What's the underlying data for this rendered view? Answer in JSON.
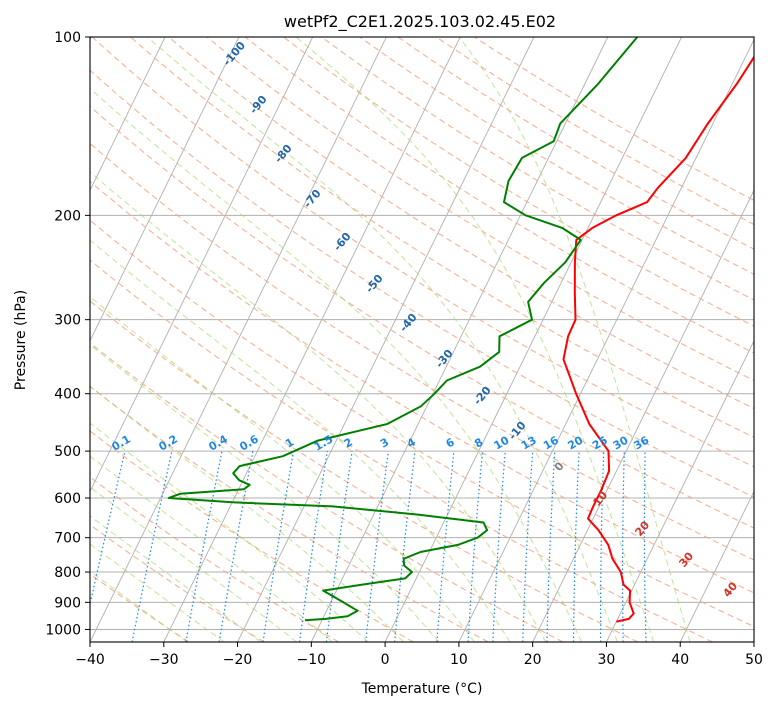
{
  "chart_data": {
    "type": "line",
    "title": "wetPf2_C2E1.2025.103.02.45.E02",
    "xlabel": "Temperature (°C)",
    "ylabel": "Pressure (hPa)",
    "xlim": [
      -40,
      50
    ],
    "ylim": [
      1050,
      100
    ],
    "y_scale": "log",
    "x_ticks": [
      -40,
      -30,
      -20,
      -10,
      0,
      10,
      20,
      30,
      40,
      50
    ],
    "y_ticks": [
      100,
      200,
      300,
      400,
      500,
      600,
      700,
      800,
      900,
      1000
    ],
    "grid": true,
    "series": [
      {
        "role": "temperature",
        "color": "#ff0000",
        "points": [
          [
            970,
            30.0
          ],
          [
            960,
            31.5
          ],
          [
            940,
            31.8
          ],
          [
            900,
            30.5
          ],
          [
            860,
            29.8
          ],
          [
            840,
            28.5
          ],
          [
            800,
            27.3
          ],
          [
            760,
            25.3
          ],
          [
            720,
            23.8
          ],
          [
            680,
            21.5
          ],
          [
            650,
            19.3
          ],
          [
            620,
            19.2
          ],
          [
            580,
            19.2
          ],
          [
            540,
            19.0
          ],
          [
            500,
            17.6
          ],
          [
            450,
            13.2
          ],
          [
            400,
            9.4
          ],
          [
            350,
            5.4
          ],
          [
            320,
            4.5
          ],
          [
            300,
            4.4
          ],
          [
            270,
            2.5
          ],
          [
            240,
            0.5
          ],
          [
            220,
            -0.8
          ],
          [
            210,
            0.6
          ],
          [
            200,
            3.0
          ],
          [
            190,
            6.3
          ],
          [
            180,
            6.8
          ],
          [
            160,
            8.6
          ],
          [
            140,
            9.3
          ],
          [
            120,
            10.6
          ],
          [
            100,
            11.6
          ]
        ]
      },
      {
        "role": "dewpoint",
        "color": "#008000",
        "points": [
          [
            965,
            -12.3
          ],
          [
            960,
            -9.6
          ],
          [
            950,
            -6.8
          ],
          [
            930,
            -5.8
          ],
          [
            900,
            -8.3
          ],
          [
            880,
            -10.0
          ],
          [
            860,
            -11.8
          ],
          [
            840,
            -6.9
          ],
          [
            820,
            -1.5
          ],
          [
            800,
            -1.0
          ],
          [
            780,
            -2.5
          ],
          [
            760,
            -3.0
          ],
          [
            740,
            -1.2
          ],
          [
            720,
            3.4
          ],
          [
            700,
            5.6
          ],
          [
            680,
            6.4
          ],
          [
            660,
            5.4
          ],
          [
            640,
            -4.0
          ],
          [
            620,
            -16.1
          ],
          [
            610,
            -30.0
          ],
          [
            600,
            -38.9
          ],
          [
            590,
            -37.6
          ],
          [
            580,
            -29.3
          ],
          [
            570,
            -28.8
          ],
          [
            560,
            -30.5
          ],
          [
            545,
            -31.8
          ],
          [
            530,
            -31.4
          ],
          [
            510,
            -26.2
          ],
          [
            480,
            -22.5
          ],
          [
            450,
            -14.2
          ],
          [
            420,
            -10.8
          ],
          [
            400,
            -9.8
          ],
          [
            380,
            -9.0
          ],
          [
            360,
            -5.4
          ],
          [
            340,
            -3.8
          ],
          [
            320,
            -4.8
          ],
          [
            300,
            -1.5
          ],
          [
            280,
            -3.2
          ],
          [
            260,
            -2.3
          ],
          [
            240,
            -0.8
          ],
          [
            220,
            -0.2
          ],
          [
            210,
            -3.5
          ],
          [
            200,
            -9.3
          ],
          [
            190,
            -13.1
          ],
          [
            175,
            -13.9
          ],
          [
            160,
            -13.6
          ],
          [
            150,
            -10.4
          ],
          [
            140,
            -10.7
          ],
          [
            120,
            -8.2
          ],
          [
            100,
            -6.0
          ]
        ]
      }
    ],
    "dry_adiabat_labels": [
      "-100",
      "-90",
      "-80",
      "-70",
      "-60",
      "-50",
      "-40",
      "-30",
      "-20",
      "-10"
    ],
    "mixing_ratio_labels": [
      "0.1",
      "0.2",
      "0.4",
      "0.6",
      "1",
      "1.5",
      "2",
      "3",
      "4",
      "6",
      "8",
      "10",
      "13",
      "16",
      "20",
      "25",
      "30",
      "36"
    ],
    "moist_adiabat_labels": [
      "0",
      "10",
      "20",
      "30",
      "40"
    ]
  },
  "colors": {
    "temperature": "#ff0000",
    "dewpoint": "#008000",
    "dry_adiabat": "#f4a582",
    "moist_adiabat": "#a6d96a",
    "mixing_ratio": "#1e88e5",
    "dry_label": "#2166ac",
    "moist_label": "#d73027",
    "grid": "#b0b0b0"
  }
}
